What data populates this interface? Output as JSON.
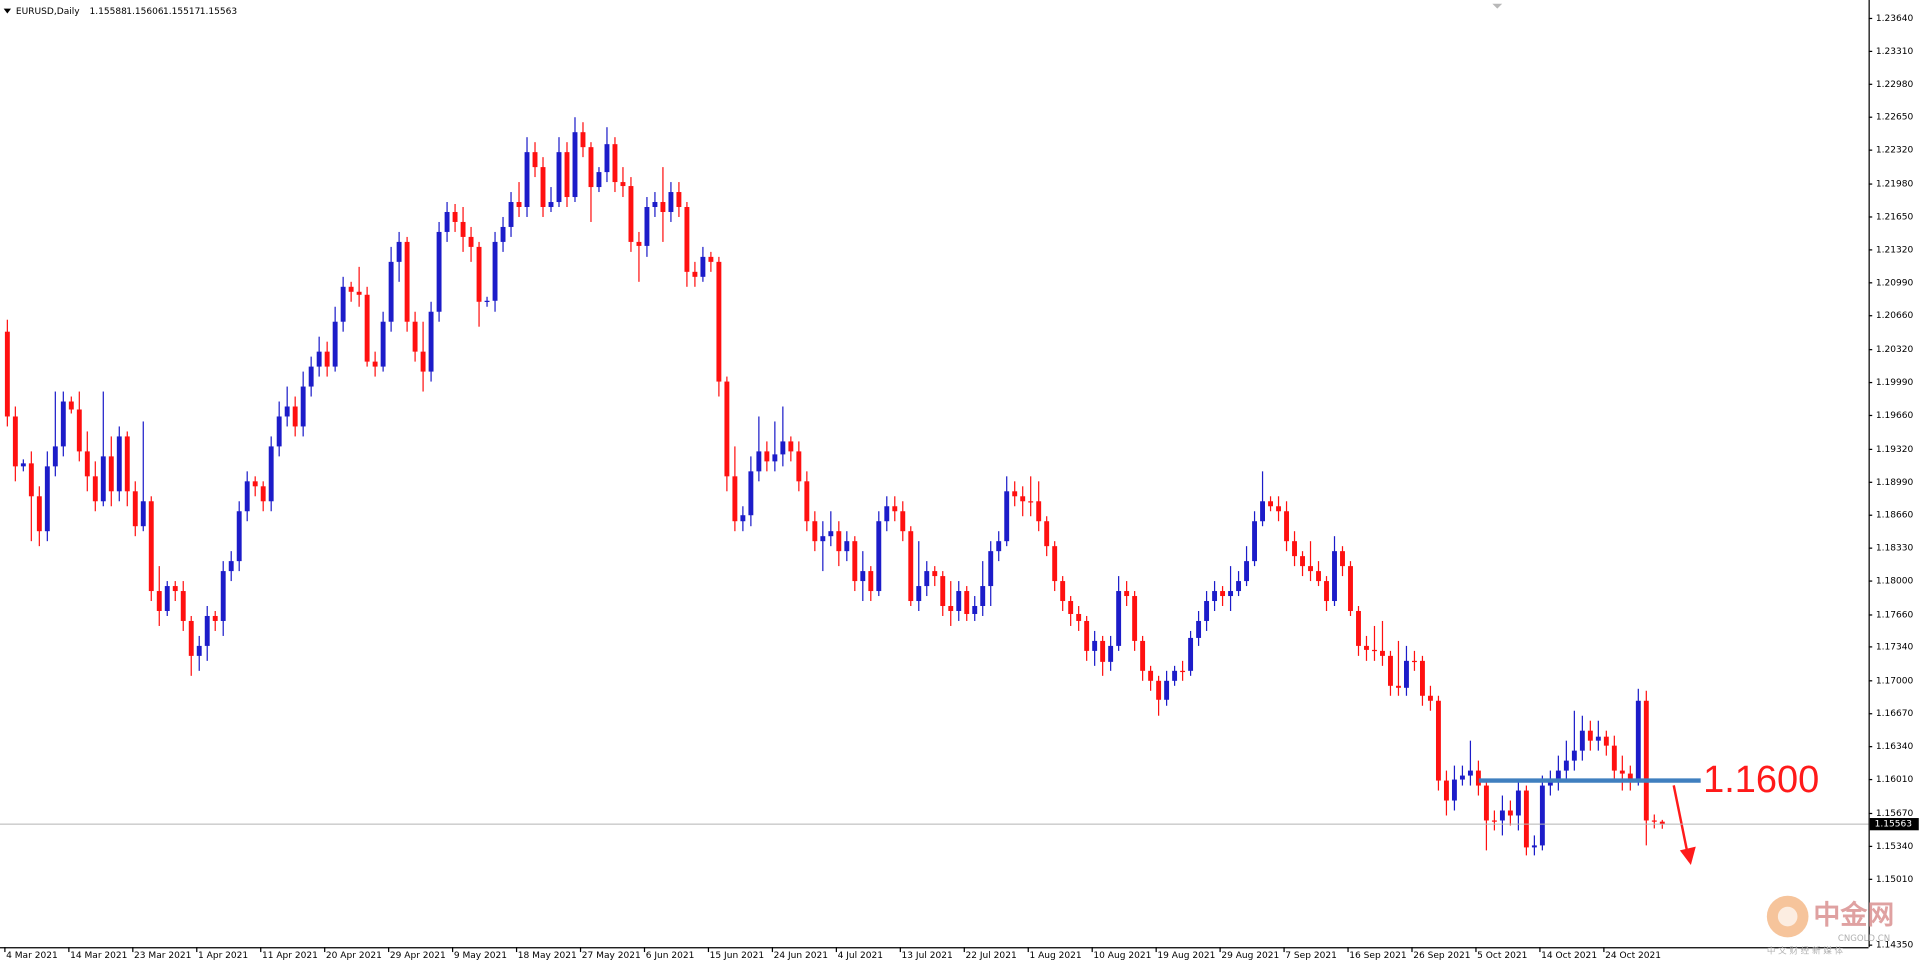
{
  "chart_data": {
    "type": "candlestick",
    "title": "EURUSD,Daily",
    "categories": [
      "4 Mar 2021",
      null,
      null,
      null,
      null,
      null,
      null,
      null,
      "14 Mar 2021",
      null,
      null,
      null,
      null,
      null,
      null,
      null,
      "23 Mar 2021",
      null,
      null,
      null,
      null,
      null,
      null,
      null,
      "1 Apr 2021",
      null,
      null,
      null,
      null,
      null,
      null,
      null,
      "11 Apr 2021",
      null,
      null,
      null,
      null,
      null,
      null,
      null,
      "20 Apr 2021",
      null,
      null,
      null,
      null,
      null,
      null,
      null,
      "29 Apr 2021",
      null,
      null,
      null,
      null,
      null,
      null,
      null,
      "9 May 2021",
      null,
      null,
      null,
      null,
      null,
      null,
      null,
      "18 May 2021",
      null,
      null,
      null,
      null,
      null,
      null,
      null,
      "27 May 2021",
      null,
      null,
      null,
      null,
      null,
      null,
      null,
      "6 Jun 2021",
      null,
      null,
      null,
      null,
      null,
      null,
      null,
      "15 Jun 2021",
      null,
      null,
      null,
      null,
      null,
      null,
      null,
      "24 Jun 2021",
      null,
      null,
      null,
      null,
      null,
      null,
      null,
      "4 Jul 2021",
      null,
      null,
      null,
      null,
      null,
      null,
      null,
      "13 Jul 2021",
      null,
      null,
      null,
      null,
      null,
      null,
      null,
      "22 Jul 2021",
      null,
      null,
      null,
      null,
      null,
      null,
      null,
      "1 Aug 2021",
      null,
      null,
      null,
      null,
      null,
      null,
      null,
      "10 Aug 2021",
      null,
      null,
      null,
      null,
      null,
      null,
      null,
      "19 Aug 2021",
      null,
      null,
      null,
      null,
      null,
      null,
      null,
      "29 Aug 2021",
      null,
      null,
      null,
      null,
      null,
      null,
      null,
      "7 Sep 2021",
      null,
      null,
      null,
      null,
      null,
      null,
      null,
      "16 Sep 2021",
      null,
      null,
      null,
      null,
      null,
      null,
      null,
      "26 Sep 2021",
      null,
      null,
      null,
      null,
      null,
      null,
      null,
      "5 Oct 2021",
      null,
      null,
      null,
      null,
      null,
      null,
      null,
      "14 Oct 2021",
      null,
      null,
      null,
      null,
      null,
      null,
      null,
      "24 Oct 2021",
      null,
      null,
      null,
      null,
      null,
      null,
      null
    ],
    "open": [
      1.205,
      1.1965,
      1.1915,
      1.1918,
      1.1885,
      1.185,
      1.1915,
      1.1935,
      1.198,
      1.1972,
      1.193,
      1.1905,
      1.188,
      1.1925,
      1.189,
      1.1945,
      1.189,
      1.1855,
      1.188,
      1.179,
      1.177,
      1.1795,
      1.179,
      1.176,
      1.1725,
      1.1735,
      1.1765,
      1.176,
      1.181,
      1.182,
      1.187,
      1.19,
      1.1895,
      1.188,
      1.1935,
      1.1965,
      1.1975,
      1.1955,
      1.1995,
      1.2015,
      1.203,
      1.2015,
      1.206,
      1.2095,
      1.209,
      1.2087,
      1.202,
      1.2015,
      1.206,
      1.212,
      1.214,
      1.206,
      1.203,
      1.201,
      1.207,
      1.215,
      1.217,
      1.216,
      1.2145,
      1.2135,
      1.208,
      1.2081,
      1.214,
      1.2155,
      1.218,
      1.2175,
      1.223,
      1.2215,
      1.2175,
      1.218,
      1.223,
      1.2185,
      1.225,
      1.2235,
      1.2195,
      1.221,
      1.2238,
      1.22,
      1.2196,
      1.214,
      1.2136,
      1.2175,
      1.218,
      1.217,
      1.219,
      1.2175,
      1.211,
      1.2105,
      1.2125,
      1.212,
      1.2,
      1.1905,
      1.186,
      1.1866,
      1.191,
      1.193,
      1.192,
      1.1927,
      1.194,
      1.193,
      1.19,
      1.186,
      1.184,
      1.1845,
      1.185,
      1.183,
      1.184,
      1.18,
      1.181,
      1.179,
      1.186,
      1.1875,
      1.187,
      1.185,
      1.178,
      1.1795,
      1.181,
      1.1805,
      1.1775,
      1.177,
      1.179,
      1.1767,
      1.1775,
      1.1795,
      1.183,
      1.184,
      1.189,
      1.1885,
      1.188,
      1.188,
      1.186,
      1.1835,
      1.18,
      1.178,
      1.1767,
      1.176,
      1.173,
      1.174,
      1.1719,
      1.1735,
      1.179,
      1.1785,
      1.174,
      1.171,
      1.17,
      1.1681,
      1.17,
      1.171,
      1.171,
      1.1743,
      1.176,
      1.178,
      1.179,
      1.1785,
      1.179,
      1.18,
      1.182,
      1.186,
      1.188,
      1.1875,
      1.187,
      1.184,
      1.1825,
      1.1815,
      1.181,
      1.18,
      1.178,
      1.183,
      1.1815,
      1.177,
      1.1735,
      1.1731,
      1.173,
      1.1725,
      1.1695,
      1.1693,
      1.172,
      1.172,
      1.1685,
      1.168,
      1.16,
      1.158,
      1.1601,
      1.1605,
      1.161,
      1.1595,
      1.156,
      1.156,
      1.157,
      1.1565,
      1.159,
      1.1533,
      1.1535,
      1.1595,
      1.16,
      1.161,
      1.162,
      1.163,
      1.165,
      1.164,
      1.1644,
      1.1635,
      1.161,
      1.1607,
      1.16,
      1.168,
      1.156,
      1.15588
    ],
    "high": [
      1.2062,
      1.1975,
      1.1922,
      1.193,
      1.1895,
      1.193,
      1.199,
      1.199,
      1.1985,
      1.199,
      1.195,
      1.192,
      1.199,
      1.1945,
      1.1955,
      1.195,
      1.19,
      1.196,
      1.1885,
      1.1815,
      1.18,
      1.18,
      1.18,
      1.1765,
      1.1745,
      1.1775,
      1.177,
      1.182,
      1.183,
      1.188,
      1.191,
      1.1905,
      1.19,
      1.1945,
      1.198,
      1.1995,
      1.1985,
      1.201,
      1.2025,
      1.2045,
      1.204,
      1.2075,
      1.2105,
      1.21,
      1.2115,
      1.2095,
      1.203,
      1.207,
      1.2135,
      1.215,
      1.2145,
      1.207,
      1.206,
      1.208,
      1.216,
      1.218,
      1.2178,
      1.2175,
      1.2155,
      1.214,
      1.2085,
      1.215,
      1.2165,
      1.219,
      1.22,
      1.2245,
      1.224,
      1.2225,
      1.2195,
      1.2245,
      1.224,
      1.2265,
      1.226,
      1.224,
      1.2215,
      1.2255,
      1.2245,
      1.2215,
      1.2205,
      1.215,
      1.2185,
      1.219,
      1.2215,
      1.22,
      1.22,
      1.218,
      1.212,
      1.2135,
      1.213,
      1.2125,
      1.2005,
      1.1935,
      1.1875,
      1.1925,
      1.1965,
      1.194,
      1.196,
      1.1975,
      1.1945,
      1.194,
      1.191,
      1.187,
      1.186,
      1.187,
      1.186,
      1.185,
      1.1845,
      1.183,
      1.1815,
      1.187,
      1.1885,
      1.1885,
      1.188,
      1.1855,
      1.184,
      1.182,
      1.1815,
      1.181,
      1.18,
      1.18,
      1.1795,
      1.1785,
      1.182,
      1.184,
      1.185,
      1.1905,
      1.19,
      1.1895,
      1.1905,
      1.19,
      1.1865,
      1.184,
      1.1805,
      1.1785,
      1.1775,
      1.1765,
      1.175,
      1.1745,
      1.1745,
      1.1805,
      1.18,
      1.179,
      1.1745,
      1.1715,
      1.1705,
      1.171,
      1.1715,
      1.172,
      1.175,
      1.177,
      1.179,
      1.18,
      1.1795,
      1.1815,
      1.181,
      1.1835,
      1.187,
      1.191,
      1.1885,
      1.1885,
      1.188,
      1.185,
      1.183,
      1.184,
      1.182,
      1.1805,
      1.1845,
      1.1835,
      1.182,
      1.1775,
      1.1745,
      1.1755,
      1.176,
      1.173,
      1.174,
      1.1735,
      1.173,
      1.1725,
      1.1695,
      1.1685,
      1.161,
      1.1615,
      1.1615,
      1.164,
      1.162,
      1.16,
      1.157,
      1.1585,
      1.158,
      1.16,
      1.1595,
      1.1545,
      1.1605,
      1.161,
      1.1625,
      1.164,
      1.167,
      1.1665,
      1.166,
      1.166,
      1.165,
      1.1645,
      1.1625,
      1.1615,
      1.1692,
      1.169,
      1.1566,
      1.15606
    ],
    "low": [
      1.1955,
      1.19,
      1.191,
      1.184,
      1.1835,
      1.184,
      1.1905,
      1.1925,
      1.1968,
      1.192,
      1.189,
      1.187,
      1.1875,
      1.1875,
      1.188,
      1.1875,
      1.1845,
      1.185,
      1.178,
      1.1755,
      1.1765,
      1.178,
      1.175,
      1.1705,
      1.171,
      1.172,
      1.175,
      1.1745,
      1.18,
      1.181,
      1.186,
      1.1885,
      1.187,
      1.187,
      1.1925,
      1.1955,
      1.1945,
      1.1945,
      1.1985,
      1.2005,
      1.2005,
      1.201,
      1.205,
      1.208,
      1.2075,
      1.2015,
      1.2005,
      1.201,
      1.205,
      1.21,
      1.205,
      1.202,
      1.199,
      1.2,
      1.206,
      1.214,
      1.215,
      1.213,
      1.212,
      1.2055,
      1.2075,
      1.207,
      1.213,
      1.2145,
      1.2165,
      1.2165,
      1.2205,
      1.2165,
      1.217,
      1.2175,
      1.2175,
      1.218,
      1.2225,
      1.216,
      1.219,
      1.22,
      1.219,
      1.2185,
      1.213,
      1.21,
      1.2125,
      1.2165,
      1.214,
      1.216,
      1.2165,
      1.2095,
      1.2095,
      1.21,
      1.211,
      1.1985,
      1.189,
      1.185,
      1.185,
      1.1855,
      1.19,
      1.191,
      1.191,
      1.1915,
      1.192,
      1.189,
      1.185,
      1.183,
      1.181,
      1.1835,
      1.1815,
      1.182,
      1.179,
      1.178,
      1.178,
      1.1785,
      1.185,
      1.186,
      1.184,
      1.1775,
      1.177,
      1.1785,
      1.1795,
      1.1765,
      1.1755,
      1.176,
      1.176,
      1.176,
      1.1765,
      1.1775,
      1.182,
      1.1835,
      1.1875,
      1.1865,
      1.1865,
      1.185,
      1.1825,
      1.179,
      1.177,
      1.1755,
      1.175,
      1.172,
      1.1715,
      1.1705,
      1.171,
      1.173,
      1.1775,
      1.173,
      1.17,
      1.169,
      1.1665,
      1.1675,
      1.1695,
      1.17,
      1.1705,
      1.1735,
      1.175,
      1.177,
      1.1775,
      1.177,
      1.1785,
      1.1795,
      1.1815,
      1.1855,
      1.187,
      1.186,
      1.183,
      1.1815,
      1.1805,
      1.18,
      1.1795,
      1.177,
      1.1775,
      1.1805,
      1.1765,
      1.1725,
      1.172,
      1.172,
      1.1715,
      1.1685,
      1.1685,
      1.1685,
      1.171,
      1.1675,
      1.167,
      1.159,
      1.1565,
      1.157,
      1.1595,
      1.1595,
      1.1585,
      1.153,
      1.155,
      1.1545,
      1.1555,
      1.155,
      1.1525,
      1.1525,
      1.153,
      1.1585,
      1.159,
      1.16,
      1.161,
      1.162,
      1.163,
      1.163,
      1.1625,
      1.16,
      1.159,
      1.159,
      1.1595,
      1.1535,
      1.1552,
      1.15517
    ],
    "close": [
      1.1965,
      1.1915,
      1.1918,
      1.1885,
      1.185,
      1.1915,
      1.1935,
      1.198,
      1.1972,
      1.193,
      1.1905,
      1.188,
      1.1925,
      1.189,
      1.1945,
      1.189,
      1.1855,
      1.188,
      1.179,
      1.177,
      1.1795,
      1.179,
      1.176,
      1.1725,
      1.1735,
      1.1765,
      1.176,
      1.181,
      1.182,
      1.187,
      1.19,
      1.1895,
      1.188,
      1.1935,
      1.1965,
      1.1975,
      1.1955,
      1.1995,
      1.2015,
      1.203,
      1.2015,
      1.206,
      1.2095,
      1.209,
      1.2087,
      1.202,
      1.2015,
      1.206,
      1.212,
      1.214,
      1.206,
      1.203,
      1.201,
      1.207,
      1.215,
      1.217,
      1.216,
      1.2145,
      1.2135,
      1.208,
      1.2081,
      1.214,
      1.2155,
      1.218,
      1.2175,
      1.223,
      1.2215,
      1.2175,
      1.218,
      1.223,
      1.2185,
      1.225,
      1.2235,
      1.2195,
      1.221,
      1.2238,
      1.22,
      1.2196,
      1.214,
      1.2136,
      1.2175,
      1.218,
      1.217,
      1.219,
      1.2175,
      1.211,
      1.2105,
      1.2125,
      1.212,
      1.2,
      1.1905,
      1.186,
      1.1866,
      1.191,
      1.193,
      1.192,
      1.1927,
      1.194,
      1.193,
      1.19,
      1.186,
      1.184,
      1.1845,
      1.185,
      1.183,
      1.184,
      1.18,
      1.181,
      1.179,
      1.186,
      1.1875,
      1.187,
      1.185,
      1.178,
      1.1795,
      1.181,
      1.1805,
      1.1775,
      1.177,
      1.179,
      1.1767,
      1.1775,
      1.1795,
      1.183,
      1.184,
      1.189,
      1.1885,
      1.188,
      1.188,
      1.186,
      1.1835,
      1.18,
      1.178,
      1.1767,
      1.176,
      1.173,
      1.174,
      1.1719,
      1.1735,
      1.179,
      1.1785,
      1.174,
      1.171,
      1.17,
      1.1681,
      1.17,
      1.171,
      1.171,
      1.1743,
      1.176,
      1.178,
      1.179,
      1.1785,
      1.179,
      1.18,
      1.182,
      1.186,
      1.188,
      1.1875,
      1.187,
      1.184,
      1.1825,
      1.1815,
      1.181,
      1.18,
      1.178,
      1.183,
      1.1815,
      1.177,
      1.1735,
      1.1731,
      1.173,
      1.1725,
      1.1695,
      1.1693,
      1.172,
      1.172,
      1.1685,
      1.168,
      1.16,
      1.158,
      1.1601,
      1.1605,
      1.161,
      1.1595,
      1.156,
      1.156,
      1.157,
      1.1565,
      1.159,
      1.1533,
      1.1535,
      1.1595,
      1.16,
      1.161,
      1.162,
      1.163,
      1.165,
      1.164,
      1.1644,
      1.1635,
      1.161,
      1.1607,
      1.16,
      1.168,
      1.156,
      1.15588,
      1.15563
    ],
    "up_color": "#1c1cc9",
    "down_color": "#ff1010",
    "ylim": [
      1.1433,
      1.23825
    ],
    "yticks": [
      {
        "value": 1.2364,
        "label": "1.23640"
      },
      {
        "value": 1.2331,
        "label": "1.23310"
      },
      {
        "value": 1.2298,
        "label": "1.22980"
      },
      {
        "value": 1.2265,
        "label": "1.22650"
      },
      {
        "value": 1.2232,
        "label": "1.22320"
      },
      {
        "value": 1.2198,
        "label": "1.21980"
      },
      {
        "value": 1.2165,
        "label": "1.21650"
      },
      {
        "value": 1.2132,
        "label": "1.21320"
      },
      {
        "value": 1.2099,
        "label": "1.20990"
      },
      {
        "value": 1.2066,
        "label": "1.20660"
      },
      {
        "value": 1.2032,
        "label": "1.20320"
      },
      {
        "value": 1.1999,
        "label": "1.19990"
      },
      {
        "value": 1.1966,
        "label": "1.19660"
      },
      {
        "value": 1.1932,
        "label": "1.19320"
      },
      {
        "value": 1.1899,
        "label": "1.18990"
      },
      {
        "value": 1.1866,
        "label": "1.18660"
      },
      {
        "value": 1.1833,
        "label": "1.18330"
      },
      {
        "value": 1.18,
        "label": "1.18000"
      },
      {
        "value": 1.1766,
        "label": "1.17660"
      },
      {
        "value": 1.1734,
        "label": "1.17340"
      },
      {
        "value": 1.17,
        "label": "1.17000"
      },
      {
        "value": 1.1667,
        "label": "1.16670"
      },
      {
        "value": 1.1634,
        "label": "1.16340"
      },
      {
        "value": 1.1601,
        "label": "1.16010"
      },
      {
        "value": 1.1567,
        "label": "1.15670"
      },
      {
        "value": 1.1534,
        "label": "1.15340"
      },
      {
        "value": 1.1501,
        "label": "1.15010"
      },
      {
        "value": 1.1435,
        "label": "1.14350"
      }
    ],
    "annotation": {
      "value": 1.16,
      "label": "1.1600",
      "color": "#3f7fbf",
      "text_color": "#ff1a1a"
    },
    "watermark": {
      "brand": "中金网",
      "site": "CNGOLD.CN",
      "slogan": "中 文 财 经 新 媒 体"
    }
  }
}
